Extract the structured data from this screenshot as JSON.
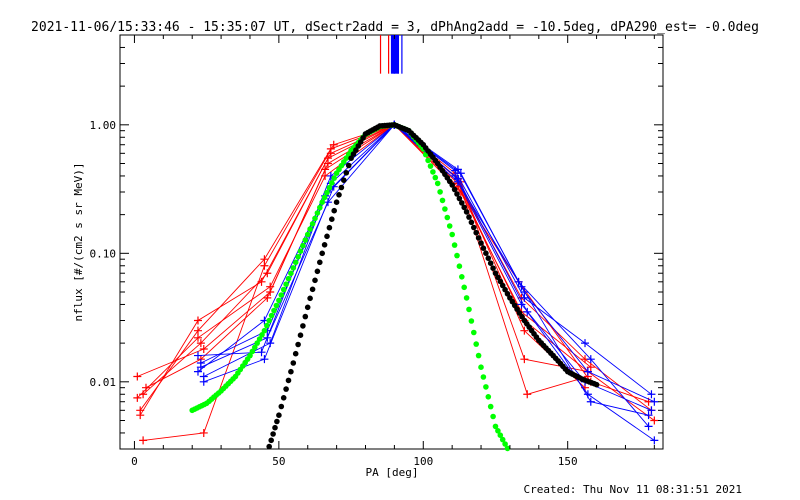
{
  "chart_data": {
    "type": "line",
    "title": "2021-11-06/15:33:46 - 15:35:07 UT, dSectr2add = 3, dPhAng2add = -10.5deg, dPA290_est= -0.0deg",
    "xlabel": "PA [deg]",
    "ylabel": "nflux [#/(cm2 s sr MeV)]",
    "xlim": [
      -5,
      183
    ],
    "ylim": [
      0.003,
      5.0
    ],
    "yscale": "log",
    "grid": false,
    "x_ticks": [
      "0",
      "50",
      "100",
      "150"
    ],
    "y_ticks": [
      "0.01",
      "0.10",
      "1.00"
    ],
    "footer": "Created: Thu Nov 11 08:31:51 2021",
    "colors": {
      "red": "#ff0000",
      "blue": "#0000ff",
      "green": "#00ff00",
      "black": "#000000"
    },
    "series": [
      {
        "color": "red",
        "style": "line-plus",
        "x": [
          2,
          22,
          45,
          68,
          90,
          112,
          135,
          157,
          180
        ],
        "y": [
          0.006,
          0.025,
          0.09,
          0.65,
          1.0,
          0.35,
          0.03,
          0.012,
          0.005
        ]
      },
      {
        "color": "red",
        "style": "line-plus",
        "x": [
          3,
          23,
          46,
          67,
          90,
          111,
          134,
          156,
          179
        ],
        "y": [
          0.008,
          0.02,
          0.07,
          0.55,
          1.0,
          0.4,
          0.045,
          0.015,
          0.006
        ]
      },
      {
        "color": "red",
        "style": "line-plus",
        "x": [
          1,
          24,
          47,
          66,
          90,
          113,
          133,
          158,
          178
        ],
        "y": [
          0.011,
          0.018,
          0.05,
          0.45,
          1.0,
          0.3,
          0.06,
          0.01,
          0.007
        ]
      },
      {
        "color": "red",
        "style": "line-plus",
        "x": [
          2,
          22,
          44,
          68,
          90,
          112,
          136,
          157
        ],
        "y": [
          0.0055,
          0.03,
          0.06,
          0.6,
          1.0,
          0.38,
          0.008,
          0.011
        ]
      },
      {
        "color": "red",
        "style": "line-plus",
        "x": [
          4,
          23,
          46,
          67,
          90,
          111,
          135,
          156
        ],
        "y": [
          0.009,
          0.015,
          0.045,
          0.5,
          1.0,
          0.42,
          0.025,
          0.009
        ]
      },
      {
        "color": "red",
        "style": "line-plus",
        "x": [
          3,
          24,
          45,
          69,
          90,
          112,
          134,
          158
        ],
        "y": [
          0.0035,
          0.004,
          0.08,
          0.7,
          1.0,
          0.33,
          0.035,
          0.013
        ]
      },
      {
        "color": "red",
        "style": "line-plus",
        "x": [
          1,
          22,
          47,
          66,
          90,
          113,
          135,
          157
        ],
        "y": [
          0.0075,
          0.022,
          0.055,
          0.4,
          1.0,
          0.36,
          0.015,
          0.012
        ]
      },
      {
        "color": "blue",
        "style": "line-plus",
        "x": [
          22,
          45,
          68,
          90,
          112,
          135,
          157,
          180
        ],
        "y": [
          0.012,
          0.03,
          0.35,
          1.0,
          0.45,
          0.05,
          0.012,
          0.007
        ]
      },
      {
        "color": "blue",
        "style": "line-plus",
        "x": [
          23,
          46,
          67,
          90,
          111,
          134,
          156,
          179
        ],
        "y": [
          0.014,
          0.025,
          0.3,
          1.0,
          0.4,
          0.04,
          0.01,
          0.006
        ]
      },
      {
        "color": "blue",
        "style": "line-plus",
        "x": [
          24,
          47,
          66,
          90,
          113,
          133,
          158,
          178
        ],
        "y": [
          0.011,
          0.02,
          0.28,
          1.0,
          0.42,
          0.06,
          0.015,
          0.0045
        ]
      },
      {
        "color": "blue",
        "style": "line-plus",
        "x": [
          22,
          44,
          68,
          90,
          112,
          136,
          157,
          180
        ],
        "y": [
          0.016,
          0.017,
          0.4,
          1.0,
          0.38,
          0.035,
          0.008,
          0.0035
        ]
      },
      {
        "color": "blue",
        "style": "line-plus",
        "x": [
          23,
          46,
          67,
          90,
          111,
          135,
          156,
          179
        ],
        "y": [
          0.013,
          0.022,
          0.25,
          1.0,
          0.44,
          0.045,
          0.02,
          0.008
        ]
      },
      {
        "color": "blue",
        "style": "line-plus",
        "x": [
          24,
          45,
          69,
          90,
          112,
          134,
          158,
          178
        ],
        "y": [
          0.01,
          0.015,
          0.33,
          1.0,
          0.36,
          0.055,
          0.007,
          0.0055
        ]
      },
      {
        "color": "green",
        "style": "dots",
        "x": [
          20,
          25,
          30,
          35,
          40,
          45,
          50,
          55,
          60,
          65,
          70,
          75,
          80,
          85,
          90,
          95,
          100,
          105,
          110,
          115,
          120,
          125,
          130
        ],
        "y": [
          0.006,
          0.0068,
          0.0085,
          0.011,
          0.016,
          0.025,
          0.043,
          0.077,
          0.14,
          0.25,
          0.42,
          0.63,
          0.84,
          0.97,
          1.0,
          0.9,
          0.65,
          0.35,
          0.14,
          0.045,
          0.013,
          0.0045,
          0.0028
        ]
      },
      {
        "color": "black",
        "style": "dots",
        "x": [
          46,
          50,
          55,
          60,
          65,
          70,
          75,
          80,
          85,
          90,
          95,
          100,
          105,
          110,
          115,
          120,
          125,
          130,
          135,
          140,
          145,
          150,
          155,
          160
        ],
        "y": [
          0.0028,
          0.0055,
          0.014,
          0.038,
          0.1,
          0.25,
          0.55,
          0.85,
          0.98,
          1.0,
          0.9,
          0.7,
          0.5,
          0.34,
          0.21,
          0.12,
          0.07,
          0.045,
          0.03,
          0.021,
          0.016,
          0.012,
          0.0105,
          0.0095
        ]
      }
    ]
  }
}
